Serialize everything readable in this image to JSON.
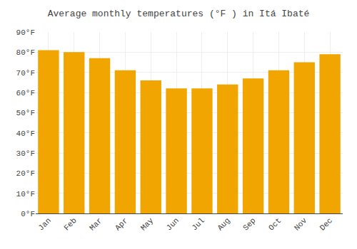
{
  "chart_data": {
    "type": "bar",
    "title": "Average monthly temperatures (°F ) in Itá Ibaté",
    "categories": [
      "Jan",
      "Feb",
      "Mar",
      "Apr",
      "May",
      "Jun",
      "Jul",
      "Aug",
      "Sep",
      "Oct",
      "Nov",
      "Dec"
    ],
    "values": [
      81,
      80,
      77,
      71,
      66,
      62,
      62,
      64,
      67,
      71,
      75,
      79
    ],
    "color": "#F0A500",
    "ylim": [
      0,
      90
    ],
    "yticks": [
      {
        "value": 0,
        "label": "0°F"
      },
      {
        "value": 10,
        "label": "10°F"
      },
      {
        "value": 20,
        "label": "20°F"
      },
      {
        "value": 30,
        "label": "30°F"
      },
      {
        "value": 40,
        "label": "40°F"
      },
      {
        "value": 50,
        "label": "50°F"
      },
      {
        "value": 60,
        "label": "60°F"
      },
      {
        "value": 70,
        "label": "70°F"
      },
      {
        "value": 80,
        "label": "80°F"
      },
      {
        "value": 90,
        "label": "90°F"
      }
    ],
    "grid": true
  }
}
